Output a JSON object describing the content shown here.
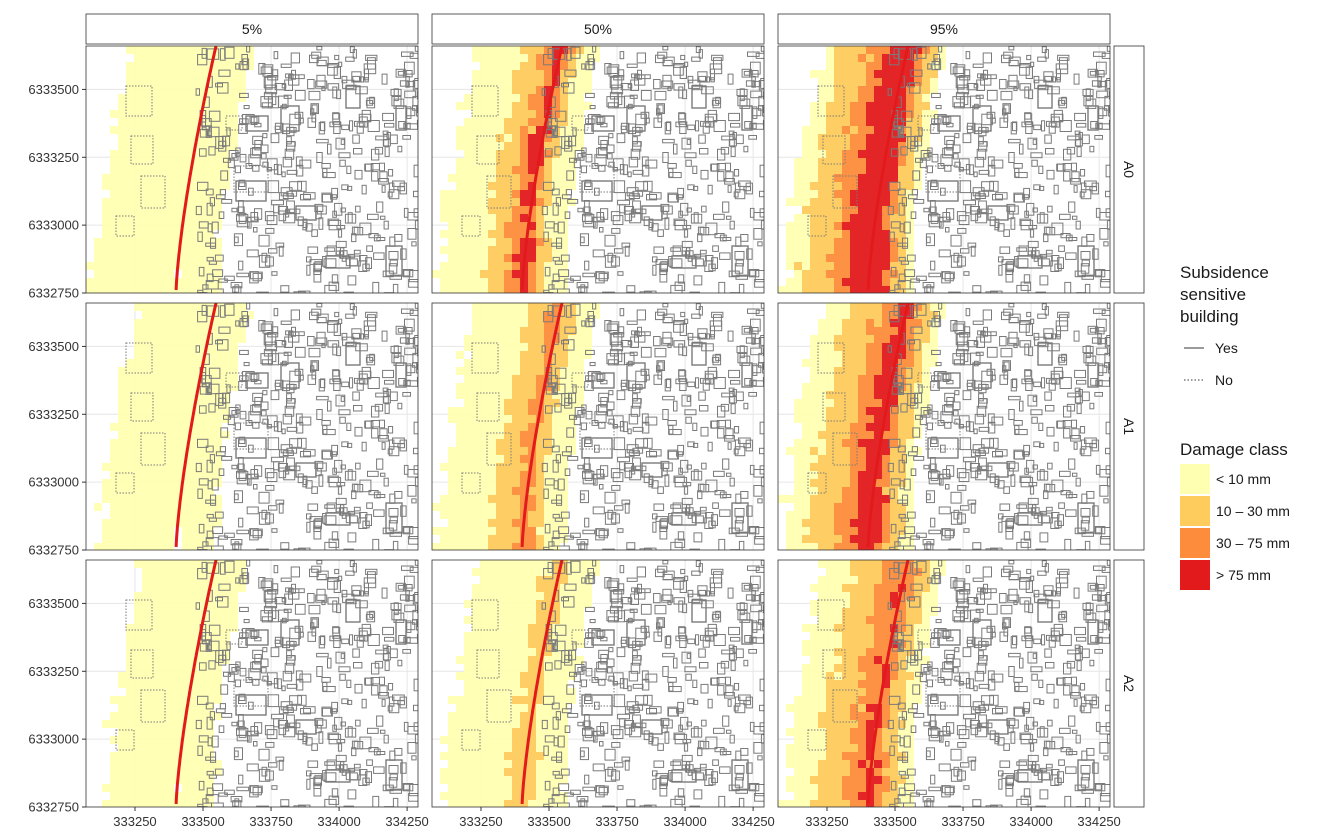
{
  "chart_data": {
    "type": "heatmap",
    "description_kind": "faceted map grid",
    "facet_columns": [
      "5%",
      "50%",
      "95%"
    ],
    "facet_rows": [
      "A0",
      "A1",
      "A2"
    ],
    "x_ticks": [
      "333250",
      "333500",
      "333750",
      "334000",
      "334250"
    ],
    "x_tick_values": [
      333250,
      333500,
      333750,
      334000,
      334250
    ],
    "y_ticks": [
      "6333500",
      "6333250",
      "6333000",
      "6332750"
    ],
    "y_tick_values": [
      6333500,
      6333250,
      6333000,
      6332750
    ],
    "xlim": [
      333070,
      334290
    ],
    "ylim": [
      6332750,
      6333660
    ],
    "grid": true,
    "legend_position": "right",
    "legends": [
      {
        "title_lines": [
          "Subsidence",
          "sensitive",
          "building"
        ],
        "items": [
          {
            "label": "Yes",
            "line": "solid"
          },
          {
            "label": "No",
            "line": "dotted"
          }
        ]
      },
      {
        "title_lines": [
          "Damage class"
        ],
        "items": [
          {
            "label": "< 10 mm",
            "color": "#ffffb2"
          },
          {
            "label": "10 – 30 mm",
            "color": "#fecc5c"
          },
          {
            "label": "30 – 75 mm",
            "color": "#fd8d3c"
          },
          {
            "label": "> 75 mm",
            "color": "#e31a1c"
          }
        ]
      }
    ],
    "colors": {
      "lt10": "#ffffb2",
      "d10_30": "#fecc5c",
      "d30_75": "#fd8d3c",
      "gt75": "#e31a1c",
      "tunnel": "#e31a1c",
      "building": "#7a7a7a"
    },
    "panels": [
      {
        "row": "A0",
        "col": "5%",
        "level_lt10": 1.0,
        "level_10_30": 0.0,
        "level_30_75": 0.0,
        "level_gt75": 0.0
      },
      {
        "row": "A0",
        "col": "50%",
        "level_lt10": 1.0,
        "level_10_30": 0.55,
        "level_30_75": 0.35,
        "level_gt75": 0.15
      },
      {
        "row": "A0",
        "col": "95%",
        "level_lt10": 1.0,
        "level_10_30": 0.95,
        "level_30_75": 0.8,
        "level_gt75": 0.65
      },
      {
        "row": "A1",
        "col": "5%",
        "level_lt10": 0.9,
        "level_10_30": 0.0,
        "level_30_75": 0.0,
        "level_gt75": 0.0
      },
      {
        "row": "A1",
        "col": "50%",
        "level_lt10": 1.0,
        "level_10_30": 0.45,
        "level_30_75": 0.15,
        "level_gt75": 0.0
      },
      {
        "row": "A1",
        "col": "95%",
        "level_lt10": 1.0,
        "level_10_30": 0.85,
        "level_30_75": 0.6,
        "level_gt75": 0.35
      },
      {
        "row": "A2",
        "col": "5%",
        "level_lt10": 0.85,
        "level_10_30": 0.0,
        "level_30_75": 0.0,
        "level_gt75": 0.0
      },
      {
        "row": "A2",
        "col": "50%",
        "level_lt10": 0.95,
        "level_10_30": 0.2,
        "level_30_75": 0.0,
        "level_gt75": 0.0
      },
      {
        "row": "A2",
        "col": "95%",
        "level_lt10": 1.0,
        "level_10_30": 0.75,
        "level_30_75": 0.45,
        "level_gt75": 0.1
      }
    ]
  }
}
